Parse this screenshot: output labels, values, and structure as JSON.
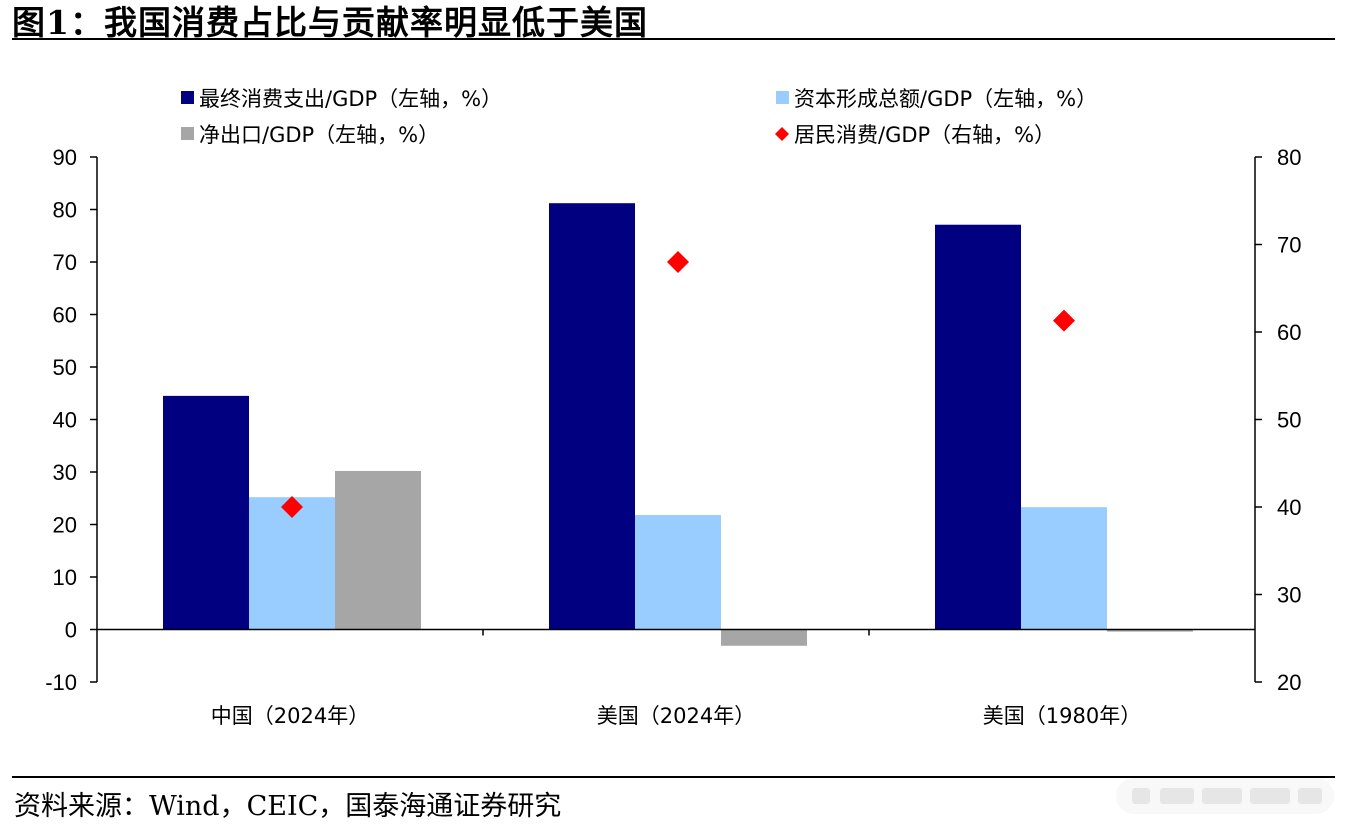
{
  "figure": {
    "title": "图1：我国消费占比与贡献率明显低于美国",
    "source": "资料来源：Wind，CEIC，国泰海通证券研究"
  },
  "colors": {
    "final_consumption": "#000080",
    "capital_formation": "#99ccff",
    "net_exports": "#a6a6a6",
    "household_consumption": "#ff0000"
  },
  "chart_data": {
    "type": "bar",
    "categories": [
      "中国（2024年）",
      "美国（2024年）",
      "美国（1980年）"
    ],
    "series": [
      {
        "name": "最终消费支出/GDP（左轴，%）",
        "axis": "left",
        "type": "bar",
        "values": [
          44.5,
          81.2,
          77.1
        ]
      },
      {
        "name": "资本形成总额/GDP（左轴，%）",
        "axis": "left",
        "type": "bar",
        "values": [
          25.2,
          21.8,
          23.3
        ]
      },
      {
        "name": "净出口/GDP（左轴，%）",
        "axis": "left",
        "type": "bar",
        "values": [
          30.2,
          -3.1,
          -0.4
        ]
      },
      {
        "name": "居民消费/GDP（右轴，%）",
        "axis": "right",
        "type": "scatter",
        "marker": "diamond",
        "values": [
          40.0,
          68.0,
          61.3
        ]
      }
    ],
    "y_left": {
      "min": -10,
      "max": 90,
      "ticks": [
        90,
        80,
        70,
        60,
        50,
        40,
        30,
        20,
        10,
        0,
        -10
      ]
    },
    "y_right": {
      "min": 20,
      "max": 80,
      "ticks": [
        80,
        70,
        60,
        50,
        40,
        30,
        20
      ]
    },
    "legend_position": "top",
    "grid": false
  }
}
